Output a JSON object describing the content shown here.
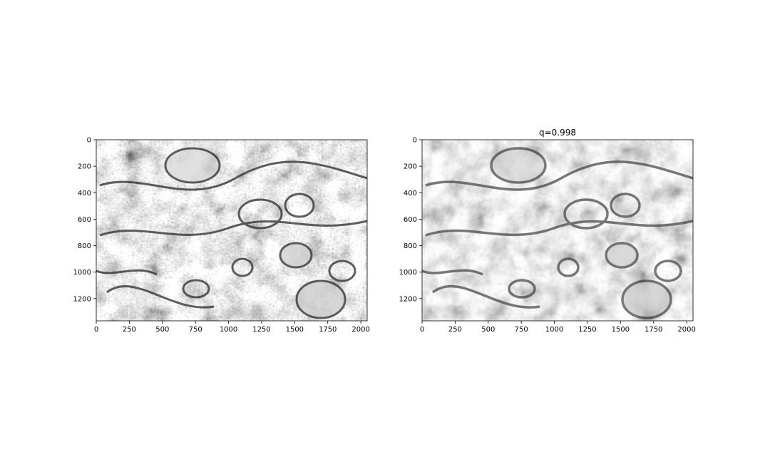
{
  "figure": {
    "panels": [
      {
        "title": "",
        "image": "grayscale electron micrograph of tissue (cells and membranes)",
        "xlim": [
          0,
          2048
        ],
        "ylim": [
          1368,
          0
        ],
        "xticks": [
          {
            "value": 0,
            "label": "0"
          },
          {
            "value": 250,
            "label": "250"
          },
          {
            "value": 500,
            "label": "500"
          },
          {
            "value": 750,
            "label": "750"
          },
          {
            "value": 1000,
            "label": "1000"
          },
          {
            "value": 1250,
            "label": "1250"
          },
          {
            "value": 1500,
            "label": "1500"
          },
          {
            "value": 1750,
            "label": "1750"
          },
          {
            "value": 2000,
            "label": "2000"
          }
        ],
        "yticks": [
          {
            "value": 0,
            "label": "0"
          },
          {
            "value": 200,
            "label": "200"
          },
          {
            "value": 400,
            "label": "400"
          },
          {
            "value": 600,
            "label": "600"
          },
          {
            "value": 800,
            "label": "800"
          },
          {
            "value": 1000,
            "label": "1000"
          },
          {
            "value": 1200,
            "label": "1200"
          }
        ]
      },
      {
        "title": "q=0.998",
        "image": "blurred version of the same grayscale electron micrograph",
        "xlim": [
          0,
          2048
        ],
        "ylim": [
          1368,
          0
        ],
        "xticks": [
          {
            "value": 0,
            "label": "0"
          },
          {
            "value": 250,
            "label": "250"
          },
          {
            "value": 500,
            "label": "500"
          },
          {
            "value": 750,
            "label": "750"
          },
          {
            "value": 1000,
            "label": "1000"
          },
          {
            "value": 1250,
            "label": "1250"
          },
          {
            "value": 1500,
            "label": "1500"
          },
          {
            "value": 1750,
            "label": "1750"
          },
          {
            "value": 2000,
            "label": "2000"
          }
        ],
        "yticks": [
          {
            "value": 0,
            "label": "0"
          },
          {
            "value": 200,
            "label": "200"
          },
          {
            "value": 400,
            "label": "400"
          },
          {
            "value": 600,
            "label": "600"
          },
          {
            "value": 800,
            "label": "800"
          },
          {
            "value": 1000,
            "label": "1000"
          },
          {
            "value": 1200,
            "label": "1200"
          }
        ]
      }
    ]
  }
}
